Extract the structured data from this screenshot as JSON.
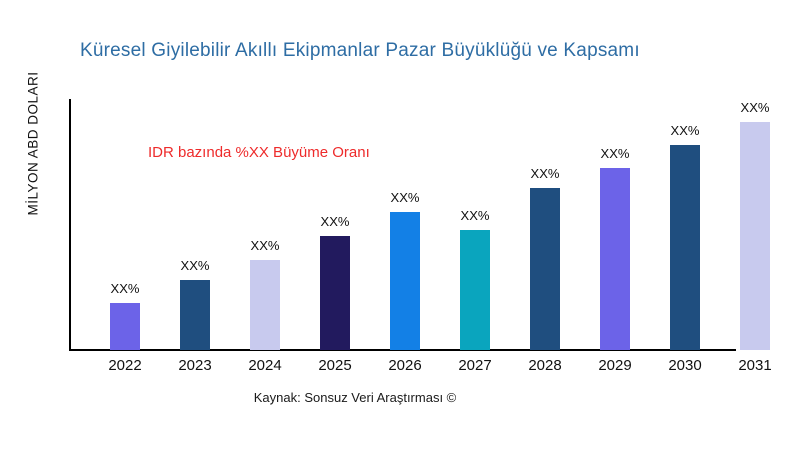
{
  "title": "Küresel Giyilebilir Akıllı Ekipmanlar Pazar Büyüklüğü ve Kapsamı",
  "title_color": "#2e6da4",
  "y_axis_label": "MİLYON ABD DOLARI",
  "annotation": {
    "text": "IDR bazında %XX Büyüme Oranı",
    "color": "#ee2b2b"
  },
  "source": "Kaynak: Sonsuz Veri Araştırması ©",
  "chart_data": {
    "type": "bar",
    "title": "Küresel Giyilebilir Akıllı Ekipmanlar Pazar Büyüklüğü ve Kapsamı",
    "xlabel": "",
    "ylabel": "MİLYON ABD DOLARI",
    "categories": [
      "2022",
      "2023",
      "2024",
      "2025",
      "2026",
      "2027",
      "2028",
      "2029",
      "2030",
      "2031"
    ],
    "values": [
      47,
      70,
      90,
      114,
      138,
      120,
      162,
      182,
      205,
      228
    ],
    "value_unit": "relative-height-px (no numeric y ticks shown; all data labels are placeholders)",
    "bar_labels": [
      "XX%",
      "XX%",
      "XX%",
      "XX%",
      "XX%",
      "XX%",
      "XX%",
      "XX%",
      "XX%",
      "XX%"
    ],
    "bar_colors": [
      "#6c63e8",
      "#1f4e7f",
      "#c8caee",
      "#221a5e",
      "#1380e6",
      "#0aa5be",
      "#1f4e7f",
      "#6c63e8",
      "#1f4e7f",
      "#c8caee"
    ],
    "annotation": "IDR bazında %XX Büyüme Oranı",
    "source": "Kaynak: Sonsuz Veri Araştırması ©",
    "ylim": [
      0,
      250
    ],
    "grid": false,
    "legend": false,
    "y_ticks": [],
    "axis_color": "#000000"
  }
}
